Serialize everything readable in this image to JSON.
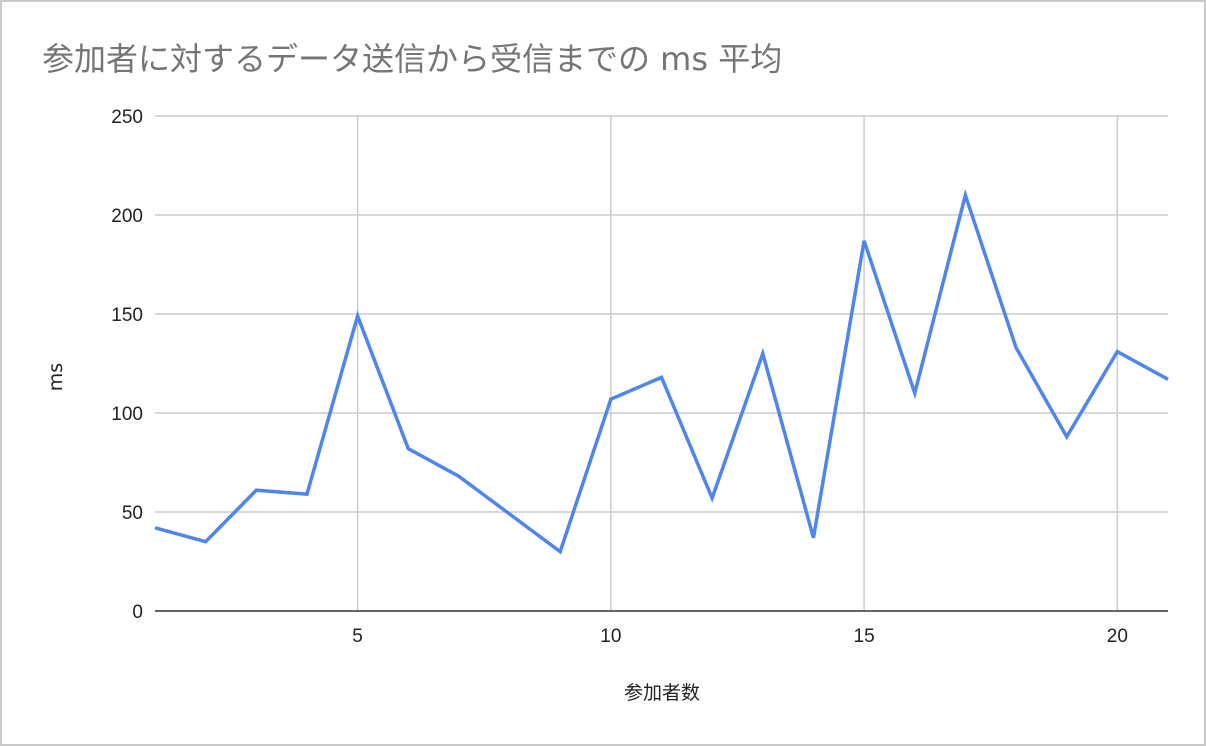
{
  "chart_data": {
    "type": "line",
    "title": "参加者に対するデータ送信から受信までの ms 平均",
    "xlabel": "参加者数",
    "ylabel": "ms",
    "xlim": [
      1,
      21
    ],
    "ylim": [
      0,
      250
    ],
    "x_ticks": [
      5,
      10,
      15,
      20
    ],
    "y_ticks": [
      0,
      50,
      100,
      150,
      200,
      250
    ],
    "grid": true,
    "legend": "none",
    "series": [
      {
        "color": "#4f86ec",
        "x": [
          1,
          2,
          3,
          4,
          5,
          6,
          7,
          8,
          9,
          10,
          11,
          12,
          13,
          14,
          15,
          16,
          17,
          18,
          19,
          20,
          21
        ],
        "values": [
          42,
          35,
          61,
          59,
          149,
          82,
          68,
          49,
          30,
          107,
          118,
          57,
          130,
          37,
          187,
          110,
          210,
          133,
          88,
          131,
          117
        ]
      }
    ]
  },
  "colors": {
    "line": "#4f86ec",
    "grid": "#cccccc",
    "axis": "#333333",
    "title": "#757575",
    "text": "#222222"
  }
}
